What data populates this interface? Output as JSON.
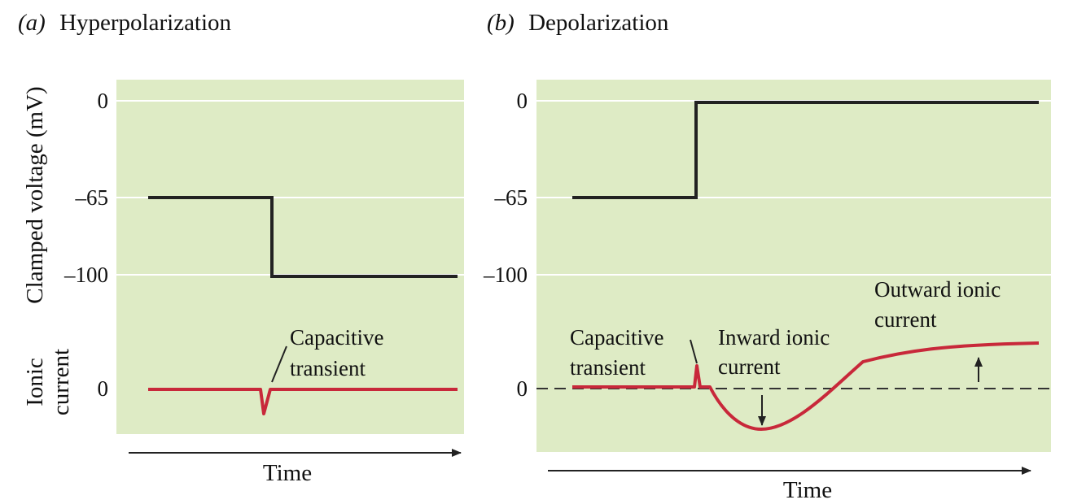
{
  "chart_data": [
    {
      "type": "line",
      "panel_label": "(a)",
      "title": "Hyperpolarization",
      "ylabel_voltage": "Clamped voltage (mV)",
      "ylabel_current_line1": "Ionic",
      "ylabel_current_line2": "current",
      "xlabel": "Time",
      "y_ticks": [
        "0",
        "–65",
        "–100"
      ],
      "current_tick": "0",
      "voltage_steps": {
        "initial_mV": -65,
        "final_mV": -100,
        "step_time_fraction": 0.37
      },
      "annotations": {
        "capacitive_line1": "Capacitive",
        "capacitive_line2": "transient"
      },
      "grid": true
    },
    {
      "type": "line",
      "panel_label": "(b)",
      "title": "Depolarization",
      "xlabel": "Time",
      "y_ticks": [
        "0",
        "–65",
        "–100"
      ],
      "current_tick": "0",
      "voltage_steps": {
        "initial_mV": -65,
        "final_mV": 0,
        "step_time_fraction": 0.32
      },
      "annotations": {
        "capacitive_line1": "Capacitive",
        "capacitive_line2": "transient",
        "inward_line1": "Inward ionic",
        "inward_line2": "current",
        "outward_line1": "Outward ionic",
        "outward_line2": "current"
      },
      "grid": true
    }
  ],
  "colors": {
    "plot_background": "#deebc5",
    "voltage_trace": "#222222",
    "current_trace": "#c8283a"
  }
}
